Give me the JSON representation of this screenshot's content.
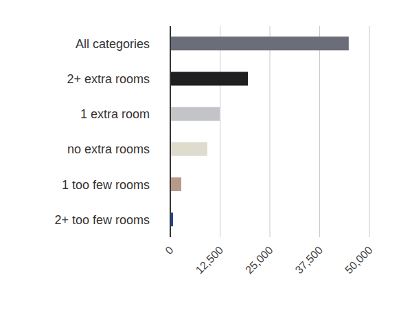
{
  "chart_data": {
    "type": "bar",
    "orientation": "horizontal",
    "categories": [
      "All categories",
      "2+ extra rooms",
      "1 extra room",
      "no extra rooms",
      "1 too few rooms",
      "2+ too few rooms"
    ],
    "values": [
      44800,
      19500,
      12400,
      9300,
      2750,
      700
    ],
    "colors": [
      "#6b6e78",
      "#1f1f21",
      "#c3c4c7",
      "#dedccc",
      "#b8998a",
      "#23449c"
    ],
    "xlim": [
      0,
      50000
    ],
    "xticks": [
      0,
      {
        "value": 12500,
        "label": "12,500"
      },
      {
        "value": 25000,
        "label": "25,000"
      },
      {
        "value": 37500,
        "label": "37,500"
      },
      {
        "value": 50000,
        "label": "50,000"
      }
    ],
    "grid": true
  }
}
